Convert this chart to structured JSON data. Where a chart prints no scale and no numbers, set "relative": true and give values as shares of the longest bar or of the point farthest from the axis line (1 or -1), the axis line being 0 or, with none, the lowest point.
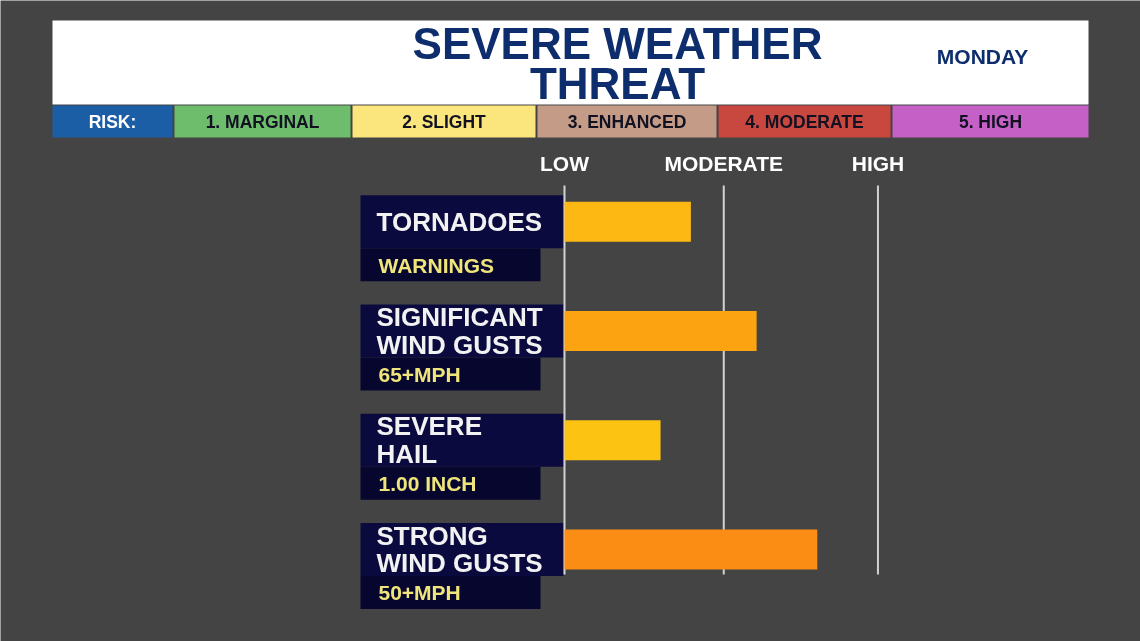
{
  "chart_data": {
    "type": "bar",
    "orientation": "horizontal",
    "relative": true,
    "title": "SEVERE WEATHER THREAT",
    "subtitle": "MONDAY",
    "categories": [
      "TORNADOES",
      "SIGNIFICANT WIND GUSTS",
      "SEVERE HAIL",
      "STRONG WIND GUSTS"
    ],
    "values": [
      0.5,
      0.76,
      0.38,
      1
    ],
    "colors": [
      "#fdb813",
      "#fca311",
      "#fdc313",
      "#fb8c14"
    ],
    "ref_lines": [
      {
        "axis": "x",
        "value": 0.63,
        "label": "MODERATE",
        "color": "#d2d2d2"
      },
      {
        "axis": "x",
        "value": 1.24,
        "label": "HIGH",
        "color": "#d2d2d2"
      }
    ],
    "annotations": [
      "WARNINGS",
      "65+MPH",
      "1.00 INCH",
      "50+MPH",
      "RISK:",
      "1. MARGINAL",
      "2. SLIGHT",
      "3. ENHANCED",
      "4. MODERATE",
      "5. HIGH",
      "LOW"
    ]
  }
}
